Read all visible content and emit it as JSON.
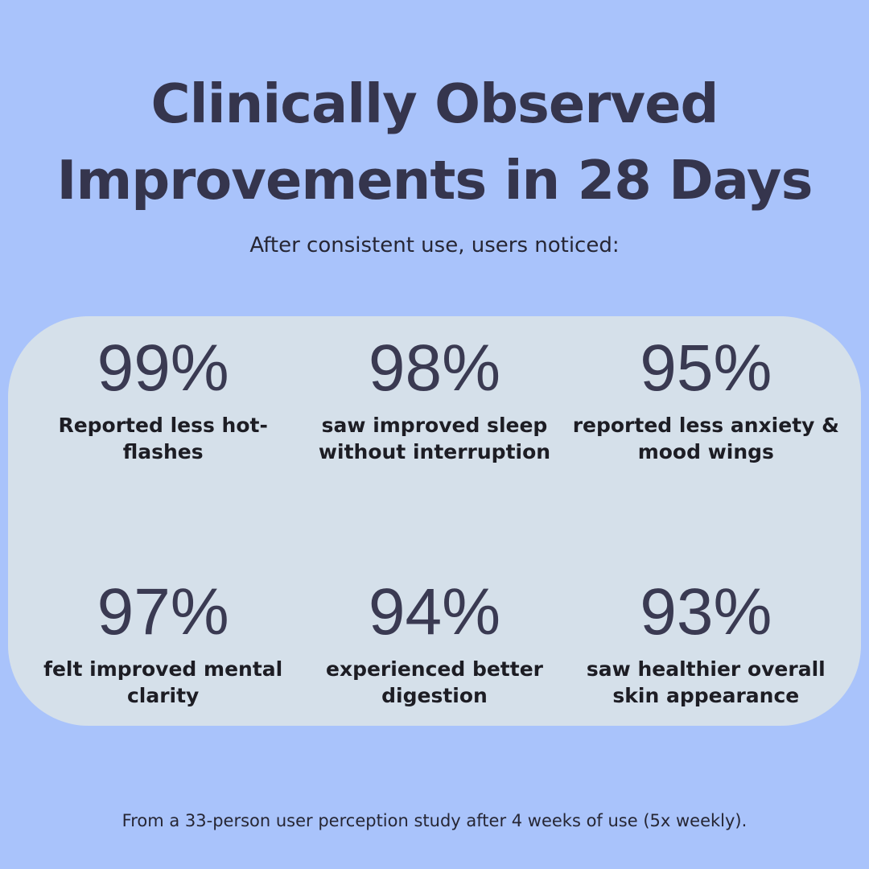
{
  "theme": {
    "background_color": "#a9c3fb",
    "card_color": "#d5e0ea",
    "title_color": "#35354d",
    "stat_value_color": "#3a3a52",
    "stat_label_color": "#1d1d24"
  },
  "header": {
    "title_line1": "Clinically Observed",
    "title_line2": "Improvements in 28 Days",
    "subtitle": "After consistent use, users noticed:"
  },
  "stats": [
    {
      "value": "99%",
      "label": "Reported less hot-\nflashes"
    },
    {
      "value": "98%",
      "label": "saw improved sleep\nwithout interruption"
    },
    {
      "value": "95%",
      "label": "reported less anxiety &\nmood wings"
    },
    {
      "value": "97%",
      "label": "felt improved mental\nclarity"
    },
    {
      "value": "94%",
      "label": "experienced better\ndigestion"
    },
    {
      "value": "93%",
      "label": "saw healthier overall\nskin appearance"
    }
  ],
  "footer": {
    "note": "From a 33-person user perception study after 4 weeks of use (5x weekly)."
  },
  "chart_data": {
    "type": "table",
    "title": "Clinically Observed Improvements in 28 Days",
    "subtitle": "After consistent use, users noticed:",
    "categories": [
      "Reported less hot-flashes",
      "saw improved sleep without interruption",
      "reported less anxiety & mood wings",
      "felt improved mental clarity",
      "experienced better digestion",
      "saw healthier overall skin appearance"
    ],
    "values": [
      99,
      98,
      95,
      97,
      94,
      93
    ],
    "unit": "%",
    "layout": "2 rows x 3 columns grid of stat callouts",
    "source_note": "From a 33-person user perception study after 4 weeks of use (5x weekly)."
  }
}
